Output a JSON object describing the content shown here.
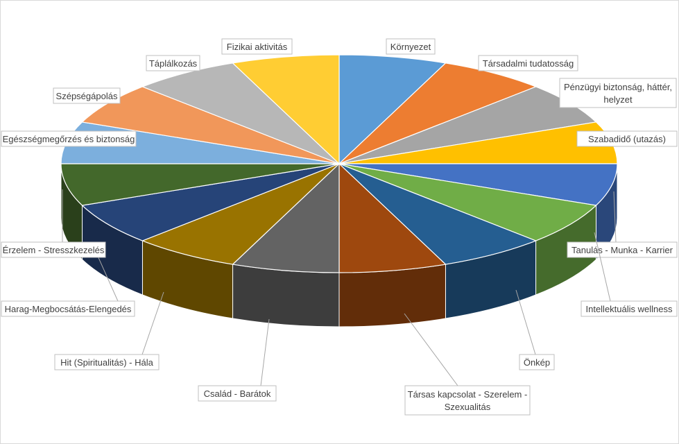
{
  "chart_data": {
    "type": "pie",
    "style": "3d-exploded-none",
    "title": "",
    "categories": [
      "Környezet",
      "Társadalmi tudatosság",
      "Pénzügyi biztonság, háttér, helyzet",
      "Szabadidő (utazás)",
      "Tanulás - Munka - Karrier",
      "Intellektuális wellness",
      "Önkép",
      "Társas kapcsolat - Szerelem - Szexualitás",
      "Család - Barátok",
      "Hit (Spiritualitás) - Hála",
      "Harag-Megbocsátás-Elengedés",
      "Érzelem - Stresszkezelés",
      "Egészségmegőrzés és biztonság",
      "Szépségápolás",
      "Táplálkozás",
      "Fizikai aktivitás"
    ],
    "values": [
      1,
      1,
      1,
      1,
      1,
      1,
      1,
      1,
      1,
      1,
      1,
      1,
      1,
      1,
      1,
      1
    ],
    "colors": [
      "#5b9bd5",
      "#ed7d31",
      "#a5a5a5",
      "#ffc000",
      "#4472c4",
      "#70ad47",
      "#255e91",
      "#9e480e",
      "#636363",
      "#997300",
      "#264478",
      "#43682b",
      "#7cafdd",
      "#f1975a",
      "#b7b7b7",
      "#ffcd33"
    ],
    "label_lines": [
      [
        "Környezet"
      ],
      [
        "Társadalmi tudatosság"
      ],
      [
        "Pénzügyi biztonság, háttér,",
        "helyzet"
      ],
      [
        "Szabadidő (utazás)"
      ],
      [
        "Tanulás - Munka - Karrier"
      ],
      [
        "Intellektuális wellness"
      ],
      [
        "Önkép"
      ],
      [
        "Társas kapcsolat - Szerelem -",
        "Szexualitás"
      ],
      [
        "Család - Barátok"
      ],
      [
        "Hit (Spiritualitás) - Hála"
      ],
      [
        "Harag-Megbocsátás-Elengedés"
      ],
      [
        "Érzelem - Stresszkezelés"
      ],
      [
        "Egészségmegőrzés és biztonság"
      ],
      [
        "Szépségápolás"
      ],
      [
        "Táplálkozás"
      ],
      [
        "Fizikai aktivitás"
      ]
    ],
    "start_angle_deg": 0,
    "direction": "clockwise",
    "legend": "none",
    "data_labels": "category-name-outside-with-leader-lines"
  }
}
